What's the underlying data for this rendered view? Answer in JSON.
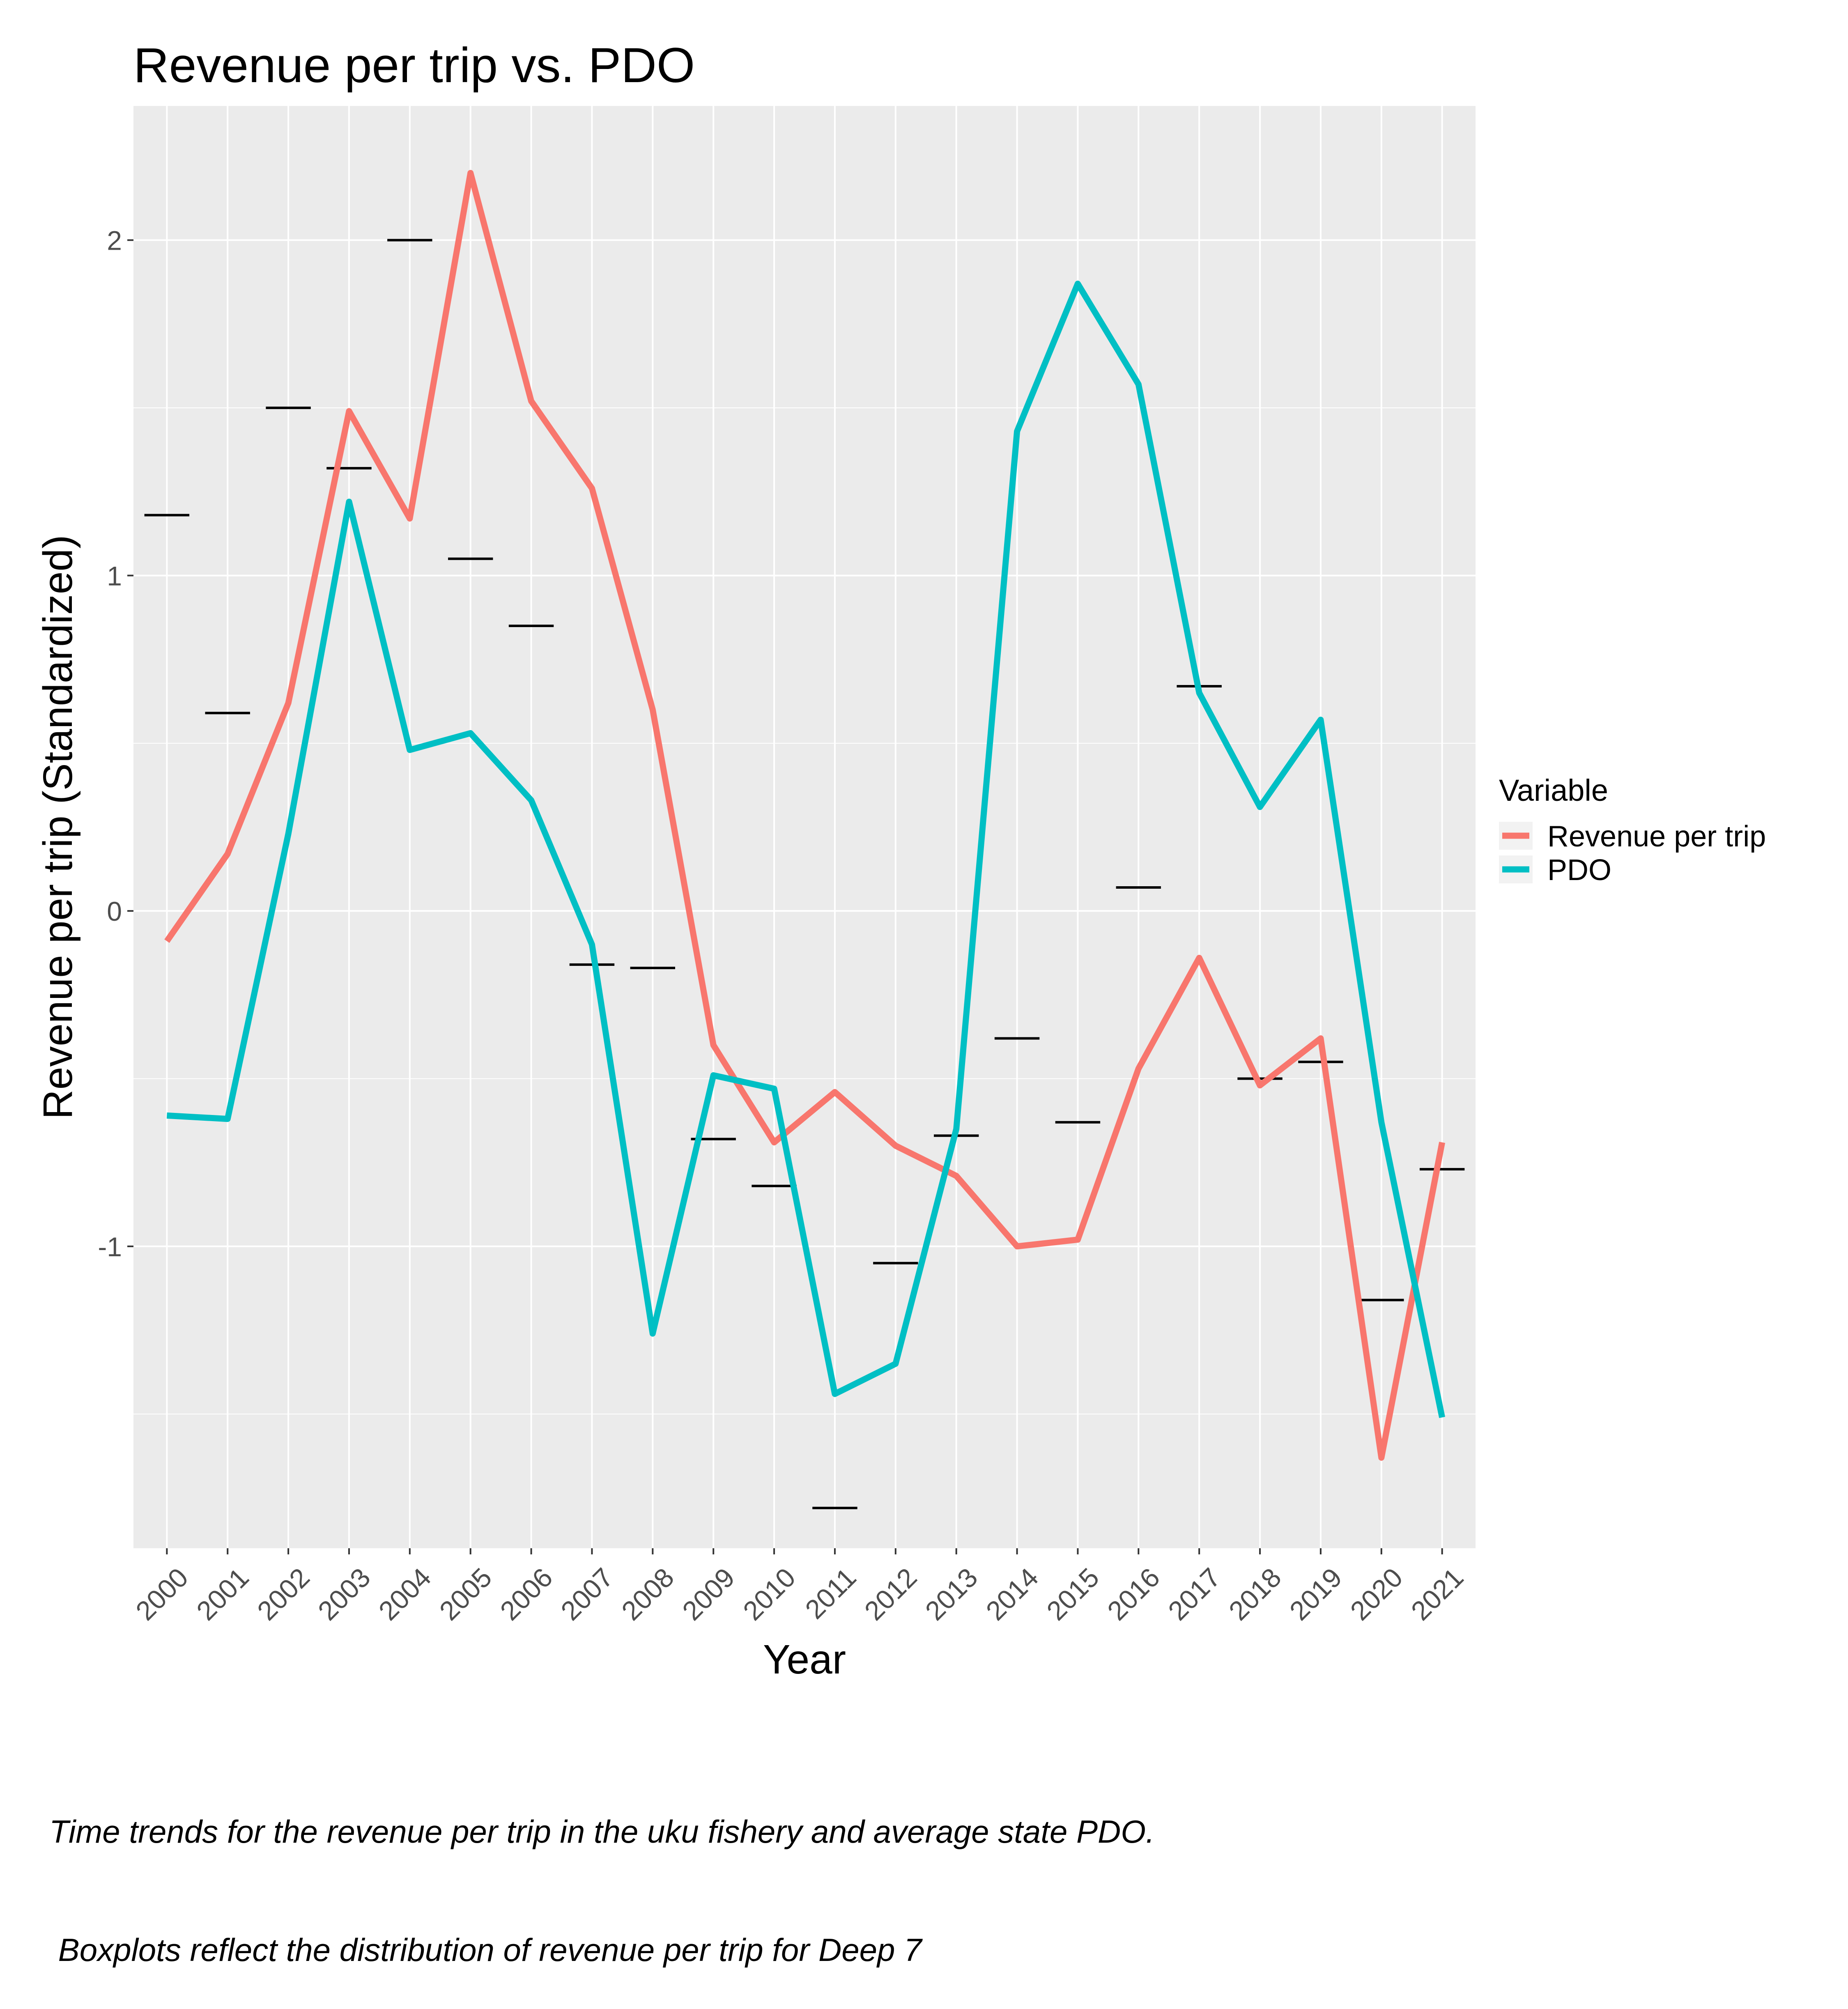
{
  "chart_data": {
    "type": "line",
    "title": "Revenue per trip vs. PDO",
    "xlabel": "Year",
    "ylabel": "Revenue per trip (Standardized)",
    "x": [
      "2000",
      "2001",
      "2002",
      "2003",
      "2004",
      "2005",
      "2006",
      "2007",
      "2008",
      "2009",
      "2010",
      "2011",
      "2012",
      "2013",
      "2014",
      "2015",
      "2016",
      "2017",
      "2018",
      "2019",
      "2020",
      "2021"
    ],
    "ylim": [
      -1.9,
      2.4
    ],
    "yticks": [
      -1,
      0,
      1,
      2
    ],
    "ytick_labels": [
      "-1",
      "0",
      "1",
      "2"
    ],
    "grid": true,
    "legend": {
      "title": "Variable",
      "position": "right"
    },
    "series": [
      {
        "name": "Revenue per trip",
        "color": "#F8766D",
        "values": [
          -0.09,
          0.17,
          0.62,
          1.49,
          1.17,
          2.2,
          1.52,
          1.26,
          0.6,
          -0.4,
          -0.69,
          -0.54,
          -0.7,
          -0.79,
          -1.0,
          -0.98,
          -0.47,
          -0.14,
          -0.52,
          -0.38,
          -1.63,
          -0.69
        ]
      },
      {
        "name": "PDO",
        "color": "#00BFC4",
        "values": [
          -0.61,
          -0.62,
          0.23,
          1.22,
          0.48,
          0.53,
          0.33,
          -0.1,
          -1.26,
          -0.49,
          -0.53,
          -1.44,
          -1.35,
          -0.65,
          1.43,
          1.87,
          1.57,
          0.65,
          0.31,
          0.57,
          -0.63,
          -1.51
        ]
      }
    ],
    "boxplot_medians": {
      "label": "Deep 7",
      "color": "#000000",
      "values": [
        1.18,
        0.59,
        1.5,
        1.32,
        2.0,
        1.05,
        0.85,
        -0.16,
        -0.17,
        -0.68,
        -0.82,
        -1.78,
        -1.05,
        -0.67,
        -0.38,
        -0.63,
        0.07,
        0.67,
        -0.5,
        -0.45,
        -1.16,
        -0.77
      ]
    }
  },
  "caption": {
    "line1": "Time trends for the revenue per trip in the uku fishery and average state PDO.",
    "line2": " Boxplots reflect the distribution of revenue per trip for Deep 7"
  }
}
